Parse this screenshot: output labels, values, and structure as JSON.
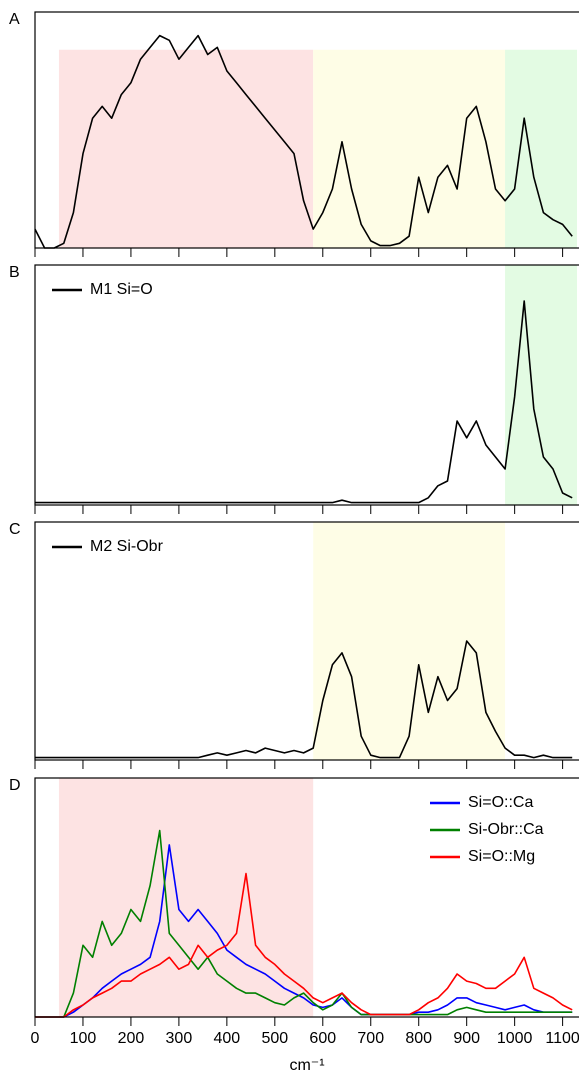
{
  "chart_data": [
    {
      "type": "line",
      "title": "A",
      "x": [
        0,
        20,
        40,
        60,
        80,
        100,
        120,
        140,
        160,
        180,
        200,
        220,
        240,
        260,
        280,
        300,
        320,
        340,
        360,
        380,
        400,
        420,
        440,
        460,
        480,
        500,
        520,
        540,
        560,
        580,
        600,
        620,
        640,
        660,
        680,
        700,
        720,
        740,
        760,
        780,
        800,
        820,
        840,
        860,
        880,
        900,
        920,
        940,
        960,
        980,
        1000,
        1020,
        1040,
        1060,
        1080,
        1100,
        1120
      ],
      "series": [
        {
          "color": "#000000",
          "values": [
            8,
            0,
            0,
            2,
            15,
            40,
            55,
            60,
            55,
            65,
            70,
            80,
            85,
            90,
            88,
            80,
            85,
            90,
            82,
            85,
            75,
            70,
            65,
            60,
            55,
            50,
            45,
            40,
            20,
            8,
            15,
            25,
            45,
            25,
            10,
            3,
            1,
            1,
            2,
            5,
            30,
            15,
            30,
            35,
            25,
            55,
            60,
            45,
            25,
            20,
            25,
            55,
            30,
            15,
            12,
            10,
            5
          ]
        }
      ],
      "shaded_regions": [
        {
          "from": 50,
          "to": 580,
          "top": 84,
          "color": "#fde3e3"
        },
        {
          "from": 580,
          "to": 980,
          "top": 84,
          "color": "#fefde6"
        },
        {
          "from": 980,
          "to": 1130,
          "top": 84,
          "color": "#e3fbe3"
        }
      ],
      "xlim": [
        0,
        1130
      ],
      "ylim": [
        0,
        100
      ],
      "xticks": [
        0,
        100,
        200,
        300,
        400,
        500,
        600,
        700,
        800,
        900,
        1000,
        1100
      ]
    },
    {
      "type": "line",
      "title": "B",
      "x": [
        0,
        20,
        40,
        60,
        80,
        100,
        120,
        140,
        160,
        180,
        200,
        220,
        240,
        260,
        280,
        300,
        320,
        340,
        360,
        380,
        400,
        420,
        440,
        460,
        480,
        500,
        520,
        540,
        560,
        580,
        600,
        620,
        640,
        660,
        680,
        700,
        720,
        740,
        760,
        780,
        800,
        820,
        840,
        860,
        880,
        900,
        920,
        940,
        960,
        980,
        1000,
        1020,
        1040,
        1060,
        1080,
        1100,
        1120
      ],
      "series": [
        {
          "name": "M1 Si=O",
          "color": "#000000",
          "values": [
            1,
            1,
            1,
            1,
            1,
            1,
            1,
            1,
            1,
            1,
            1,
            1,
            1,
            1,
            1,
            1,
            1,
            1,
            1,
            1,
            1,
            1,
            1,
            1,
            1,
            1,
            1,
            1,
            1,
            1,
            1,
            1,
            2,
            1,
            1,
            1,
            1,
            1,
            1,
            1,
            1,
            3,
            8,
            10,
            35,
            28,
            35,
            25,
            20,
            15,
            45,
            85,
            40,
            20,
            15,
            5,
            3
          ]
        }
      ],
      "shaded_regions": [
        {
          "from": 980,
          "to": 1130,
          "top": 100,
          "color": "#e3fbe3"
        }
      ],
      "legend": "upper left",
      "xlim": [
        0,
        1130
      ],
      "ylim": [
        0,
        100
      ],
      "xticks": [
        0,
        100,
        200,
        300,
        400,
        500,
        600,
        700,
        800,
        900,
        1000,
        1100
      ]
    },
    {
      "type": "line",
      "title": "C",
      "x": [
        0,
        20,
        40,
        60,
        80,
        100,
        120,
        140,
        160,
        180,
        200,
        220,
        240,
        260,
        280,
        300,
        320,
        340,
        360,
        380,
        400,
        420,
        440,
        460,
        480,
        500,
        520,
        540,
        560,
        580,
        600,
        620,
        640,
        660,
        680,
        700,
        720,
        740,
        760,
        780,
        800,
        820,
        840,
        860,
        880,
        900,
        920,
        940,
        960,
        980,
        1000,
        1020,
        1040,
        1060,
        1080,
        1100,
        1120
      ],
      "series": [
        {
          "name": "M2 Si-Obr",
          "color": "#000000",
          "values": [
            1,
            1,
            1,
            1,
            1,
            1,
            1,
            1,
            1,
            1,
            1,
            1,
            1,
            1,
            1,
            1,
            1,
            1,
            2,
            3,
            2,
            3,
            4,
            3,
            5,
            4,
            3,
            4,
            3,
            5,
            25,
            40,
            45,
            35,
            10,
            2,
            1,
            1,
            1,
            10,
            40,
            20,
            35,
            25,
            30,
            50,
            45,
            20,
            12,
            5,
            2,
            2,
            1,
            2,
            1,
            1,
            1
          ]
        }
      ],
      "shaded_regions": [
        {
          "from": 580,
          "to": 980,
          "top": 100,
          "color": "#fefde6"
        }
      ],
      "legend": "upper left",
      "xlim": [
        0,
        1130
      ],
      "ylim": [
        0,
        100
      ],
      "xticks": [
        0,
        100,
        200,
        300,
        400,
        500,
        600,
        700,
        800,
        900,
        1000,
        1100
      ]
    },
    {
      "type": "line",
      "title": "D",
      "xlabel": "cm⁻¹",
      "x": [
        0,
        20,
        40,
        60,
        80,
        100,
        120,
        140,
        160,
        180,
        200,
        220,
        240,
        260,
        280,
        300,
        320,
        340,
        360,
        380,
        400,
        420,
        440,
        460,
        480,
        500,
        520,
        540,
        560,
        580,
        600,
        620,
        640,
        660,
        680,
        700,
        720,
        740,
        760,
        780,
        800,
        820,
        840,
        860,
        880,
        900,
        920,
        940,
        960,
        980,
        1000,
        1020,
        1040,
        1060,
        1080,
        1100,
        1120
      ],
      "series": [
        {
          "name": "Si=O::Ca",
          "color": "#0000ff",
          "values": [
            0,
            0,
            0,
            0,
            2,
            5,
            8,
            12,
            15,
            18,
            20,
            22,
            25,
            40,
            72,
            45,
            40,
            45,
            40,
            35,
            28,
            25,
            22,
            20,
            18,
            15,
            12,
            10,
            8,
            5,
            4,
            5,
            8,
            4,
            1,
            1,
            1,
            1,
            1,
            1,
            2,
            2,
            3,
            5,
            8,
            8,
            6,
            5,
            4,
            3,
            4,
            5,
            3,
            2,
            2,
            2,
            2
          ]
        },
        {
          "name": "Si-Obr::Ca",
          "color": "#008000",
          "values": [
            0,
            0,
            0,
            0,
            10,
            30,
            25,
            40,
            30,
            35,
            45,
            40,
            55,
            78,
            35,
            30,
            25,
            20,
            25,
            18,
            15,
            12,
            10,
            10,
            8,
            6,
            5,
            8,
            10,
            6,
            3,
            5,
            10,
            4,
            1,
            1,
            1,
            1,
            1,
            1,
            1,
            1,
            1,
            1,
            3,
            4,
            3,
            2,
            2,
            2,
            2,
            2,
            2,
            2,
            2,
            2,
            2
          ]
        },
        {
          "name": "Si=O::Mg",
          "color": "#ff0000",
          "values": [
            0,
            0,
            0,
            0,
            3,
            5,
            8,
            10,
            12,
            15,
            15,
            18,
            20,
            22,
            25,
            20,
            22,
            30,
            25,
            28,
            30,
            35,
            60,
            30,
            25,
            22,
            18,
            15,
            12,
            8,
            6,
            8,
            10,
            6,
            3,
            1,
            1,
            1,
            1,
            1,
            3,
            6,
            8,
            12,
            18,
            15,
            14,
            12,
            12,
            15,
            18,
            25,
            12,
            10,
            8,
            5,
            3
          ]
        }
      ],
      "shaded_regions": [
        {
          "from": 50,
          "to": 580,
          "top": 100,
          "color": "#fde3e3"
        }
      ],
      "legend": "upper right",
      "xlim": [
        0,
        1130
      ],
      "ylim": [
        0,
        100
      ],
      "xticks": [
        0,
        100,
        200,
        300,
        400,
        500,
        600,
        700,
        800,
        900,
        1000,
        1100
      ]
    }
  ]
}
